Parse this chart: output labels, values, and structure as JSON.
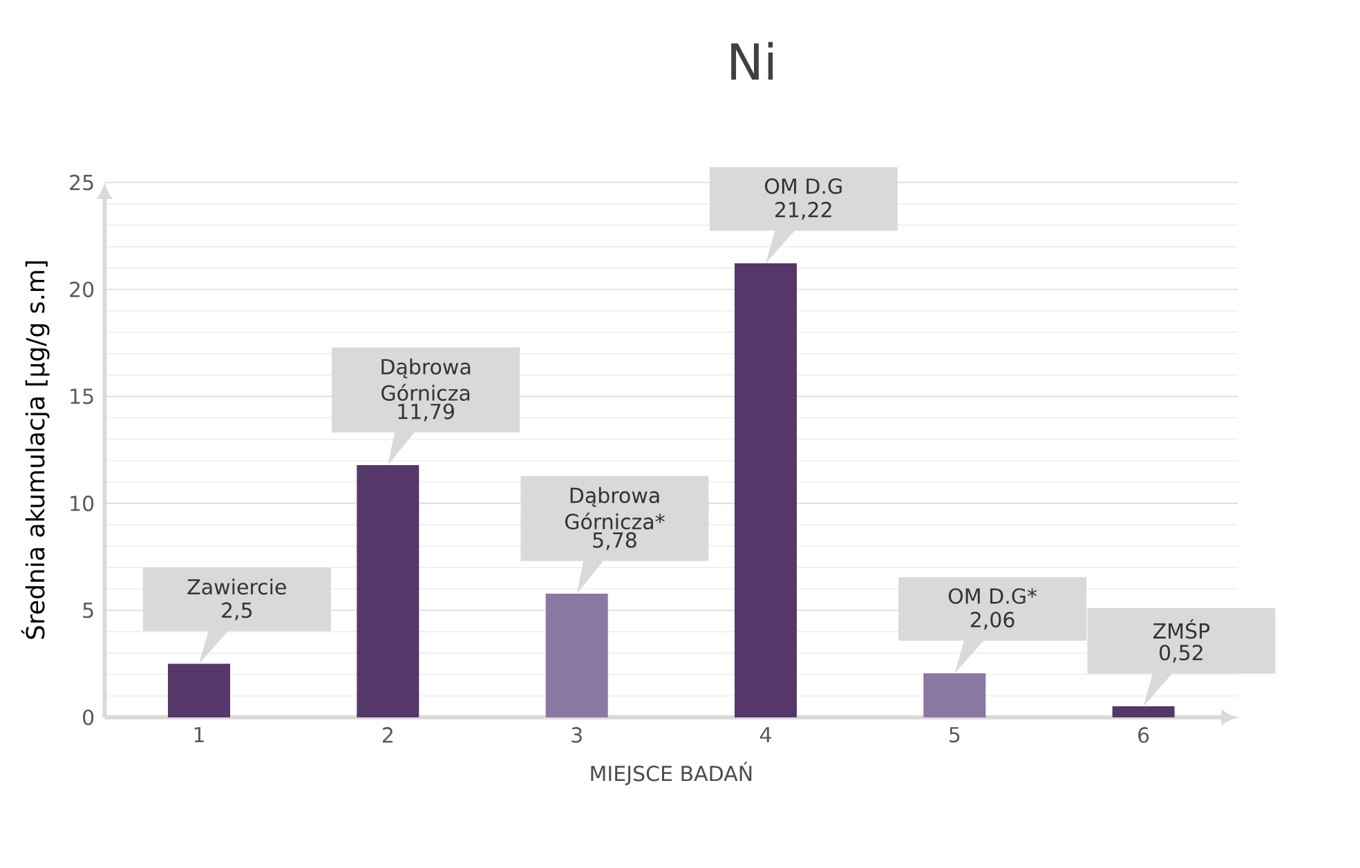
{
  "chart_data": {
    "type": "bar",
    "title": "Ni",
    "xlabel": "MIEJSCE BADAŃ",
    "ylabel": "Średnia akumulacja [µg/g s.m]",
    "categories": [
      "1",
      "2",
      "3",
      "4",
      "5",
      "6"
    ],
    "values": [
      2.5,
      11.79,
      5.78,
      21.22,
      2.06,
      0.52
    ],
    "colors": [
      "#553769",
      "#553769",
      "#8a77a3",
      "#553769",
      "#8a77a3",
      "#553769"
    ],
    "value_labels": [
      "2,5",
      "11,79",
      "5,78",
      "21,22",
      "2,06",
      "0,52"
    ],
    "annotations": [
      "Zawiercie",
      "Dąbrowa Górnicza",
      "Dąbrowa Górnicza*",
      "OM D.G",
      "OM D.G*",
      "ZMŚP"
    ],
    "ylim": [
      0,
      25
    ],
    "yticks": [
      0,
      5,
      10,
      15,
      20,
      25
    ],
    "grid": "y"
  }
}
